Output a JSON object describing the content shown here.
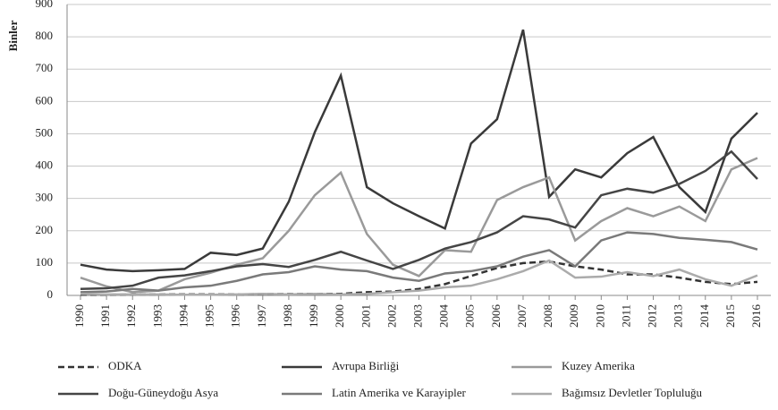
{
  "chart_data": {
    "type": "line",
    "y_label": "Binler",
    "categories": [
      "1990",
      "1991",
      "1992",
      "1993",
      "1994",
      "1995",
      "1996",
      "1997",
      "1998",
      "1999",
      "2000",
      "2001",
      "2002",
      "2003",
      "2004",
      "2005",
      "2006",
      "2007",
      "2008",
      "2009",
      "2010",
      "2011",
      "2012",
      "2013",
      "2014",
      "2015",
      "2016"
    ],
    "ylim": [
      0,
      900
    ],
    "yticks": [
      0,
      100,
      200,
      300,
      400,
      500,
      600,
      700,
      800,
      900
    ],
    "grid": true,
    "series": [
      {
        "name": "ODKA",
        "color": "#333333",
        "dashed": true,
        "values": [
          2,
          2,
          3,
          3,
          3,
          3,
          3,
          4,
          4,
          5,
          5,
          10,
          12,
          20,
          35,
          60,
          85,
          100,
          105,
          90,
          80,
          65,
          65,
          55,
          42,
          35,
          42
        ]
      },
      {
        "name": "Avrupa Birliği",
        "color": "#3a3a3a",
        "values": [
          95,
          80,
          75,
          78,
          82,
          132,
          125,
          145,
          290,
          505,
          680,
          335,
          285,
          245,
          207,
          470,
          545,
          822,
          305,
          390,
          365,
          440,
          490,
          335,
          258,
          485,
          565
        ]
      },
      {
        "name": "Kuzey Amerika",
        "color": "#9a9a9a",
        "values": [
          55,
          28,
          10,
          15,
          50,
          70,
          95,
          115,
          200,
          310,
          380,
          190,
          95,
          60,
          140,
          135,
          295,
          335,
          365,
          170,
          230,
          270,
          245,
          275,
          230,
          390,
          425
        ]
      },
      {
        "name": "Doğu-Güneydoğu Asya",
        "color": "#454545",
        "values": [
          20,
          22,
          30,
          55,
          62,
          75,
          90,
          97,
          88,
          110,
          135,
          108,
          82,
          110,
          145,
          165,
          195,
          245,
          235,
          210,
          310,
          330,
          318,
          345,
          385,
          445,
          360
        ]
      },
      {
        "name": "Latin Amerika  ve Karayipler",
        "color": "#7a7a7a",
        "values": [
          10,
          12,
          20,
          15,
          25,
          30,
          45,
          65,
          72,
          90,
          80,
          75,
          55,
          45,
          68,
          75,
          90,
          120,
          140,
          90,
          170,
          195,
          190,
          178,
          172,
          165,
          142
        ]
      },
      {
        "name": "Bağımsız Devletler Topluluğu",
        "color": "#ababab",
        "values": [
          5,
          3,
          3,
          3,
          2,
          2,
          3,
          5,
          3,
          5,
          3,
          5,
          10,
          15,
          25,
          30,
          50,
          75,
          108,
          55,
          58,
          72,
          60,
          80,
          50,
          30,
          62
        ]
      }
    ]
  }
}
